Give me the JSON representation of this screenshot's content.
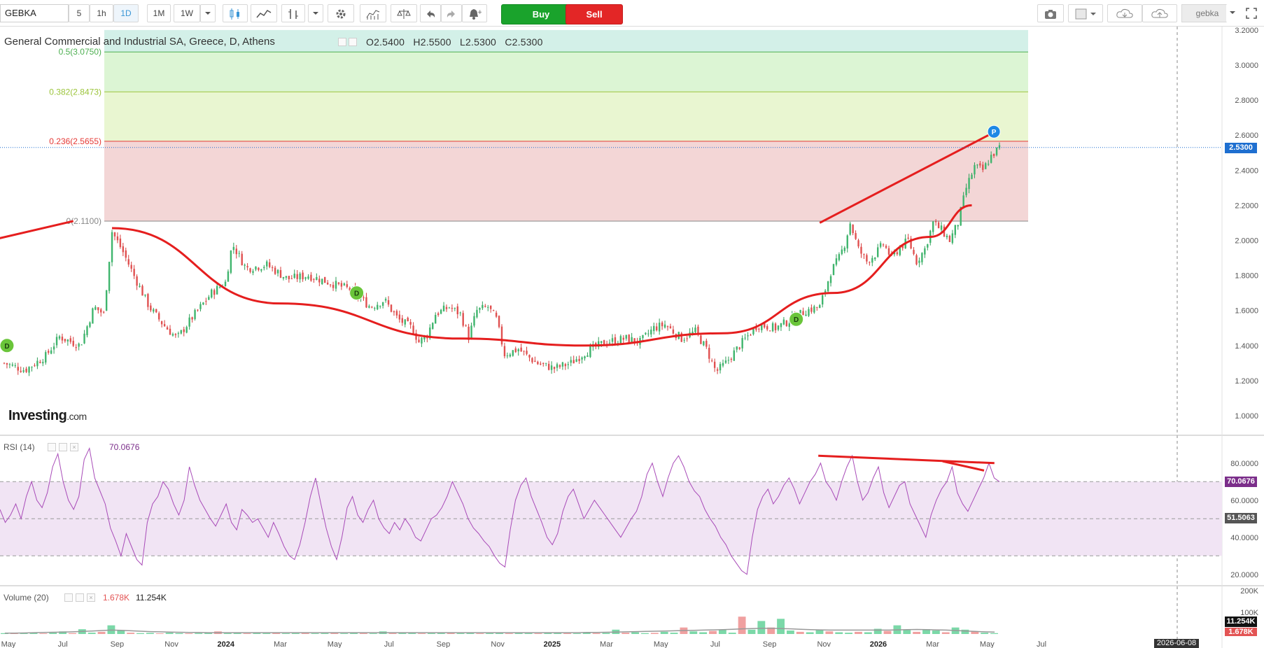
{
  "toolbar": {
    "symbol": "GEBKA",
    "intervals": [
      "5",
      "1h",
      "1D",
      "1M",
      "1W"
    ],
    "active_interval": "1D",
    "buy_label": "Buy",
    "sell_label": "Sell",
    "user": "gebka",
    "icons": [
      "chevron-down-icon",
      "candlestick-icon",
      "line-style-icon",
      "bar-style-icon",
      "chevron-down-icon",
      "settings-icon",
      "indicators-icon",
      "compare-icon",
      "undo-icon",
      "redo-icon",
      "alert-icon",
      "camera-icon",
      "layout-icon",
      "cloud-download-icon",
      "cloud-upload-icon",
      "fullscreen-icon"
    ]
  },
  "legend": {
    "title": "General Commercial and Industrial SA, Greece, D, Athens",
    "open": "O2.5400",
    "high": "H2.5500",
    "low": "L2.5300",
    "close": "C2.5300"
  },
  "logo": {
    "main": "Investing",
    "suffix": ".com"
  },
  "chart_data": [
    {
      "type": "candlestick",
      "title": "General Commercial and Industrial SA, Greece, D, Athens",
      "x_ticks": [
        "May",
        "Jul",
        "Sep",
        "Nov",
        "2024",
        "Mar",
        "May",
        "Jul",
        "Sep",
        "Nov",
        "2025",
        "Mar",
        "May",
        "Jul",
        "Sep",
        "Nov",
        "2026",
        "Mar",
        "May",
        "Jul"
      ],
      "crosshair_date": "2026-06-08",
      "y_ticks": [
        "1.0000",
        "1.2000",
        "1.4000",
        "1.6000",
        "1.8000",
        "2.0000",
        "2.2000",
        "2.4000",
        "2.6000",
        "2.8000",
        "3.0000",
        "3.2000"
      ],
      "ylim": [
        0.9,
        3.2
      ],
      "last_price": "2.5300",
      "ohlc_last": {
        "open": 2.54,
        "high": 2.55,
        "low": 2.53,
        "close": 2.53
      },
      "close_path": [
        {
          "i": 0,
          "v": 1.3
        },
        {
          "i": 15,
          "v": 1.26
        },
        {
          "i": 30,
          "v": 1.34
        },
        {
          "i": 40,
          "v": 1.45
        },
        {
          "i": 55,
          "v": 1.4
        },
        {
          "i": 65,
          "v": 1.62
        },
        {
          "i": 72,
          "v": 1.58
        },
        {
          "i": 78,
          "v": 2.05
        },
        {
          "i": 85,
          "v": 1.95
        },
        {
          "i": 95,
          "v": 1.78
        },
        {
          "i": 105,
          "v": 1.62
        },
        {
          "i": 115,
          "v": 1.52
        },
        {
          "i": 125,
          "v": 1.44
        },
        {
          "i": 135,
          "v": 1.55
        },
        {
          "i": 150,
          "v": 1.7
        },
        {
          "i": 160,
          "v": 1.76
        },
        {
          "i": 165,
          "v": 1.98
        },
        {
          "i": 175,
          "v": 1.84
        },
        {
          "i": 190,
          "v": 1.86
        },
        {
          "i": 205,
          "v": 1.78
        },
        {
          "i": 220,
          "v": 1.8
        },
        {
          "i": 235,
          "v": 1.76
        },
        {
          "i": 250,
          "v": 1.72
        },
        {
          "i": 265,
          "v": 1.62
        },
        {
          "i": 275,
          "v": 1.66
        },
        {
          "i": 285,
          "v": 1.55
        },
        {
          "i": 295,
          "v": 1.5
        },
        {
          "i": 300,
          "v": 1.42
        },
        {
          "i": 306,
          "v": 1.46
        },
        {
          "i": 312,
          "v": 1.58
        },
        {
          "i": 322,
          "v": 1.62
        },
        {
          "i": 330,
          "v": 1.58
        },
        {
          "i": 336,
          "v": 1.45
        },
        {
          "i": 342,
          "v": 1.6
        },
        {
          "i": 350,
          "v": 1.62
        },
        {
          "i": 356,
          "v": 1.55
        },
        {
          "i": 362,
          "v": 1.35
        },
        {
          "i": 372,
          "v": 1.38
        },
        {
          "i": 385,
          "v": 1.3
        },
        {
          "i": 398,
          "v": 1.27
        },
        {
          "i": 410,
          "v": 1.3
        },
        {
          "i": 420,
          "v": 1.36
        },
        {
          "i": 435,
          "v": 1.42
        },
        {
          "i": 450,
          "v": 1.44
        },
        {
          "i": 460,
          "v": 1.42
        },
        {
          "i": 470,
          "v": 1.5
        },
        {
          "i": 478,
          "v": 1.52
        },
        {
          "i": 490,
          "v": 1.44
        },
        {
          "i": 500,
          "v": 1.48
        },
        {
          "i": 508,
          "v": 1.38
        },
        {
          "i": 515,
          "v": 1.25
        },
        {
          "i": 522,
          "v": 1.3
        },
        {
          "i": 532,
          "v": 1.4
        },
        {
          "i": 545,
          "v": 1.52
        },
        {
          "i": 558,
          "v": 1.5
        },
        {
          "i": 570,
          "v": 1.55
        },
        {
          "i": 580,
          "v": 1.6
        },
        {
          "i": 590,
          "v": 1.62
        },
        {
          "i": 598,
          "v": 1.82
        },
        {
          "i": 604,
          "v": 1.9
        },
        {
          "i": 608,
          "v": 1.98
        },
        {
          "i": 612,
          "v": 2.1
        },
        {
          "i": 618,
          "v": 1.95
        },
        {
          "i": 624,
          "v": 1.88
        },
        {
          "i": 630,
          "v": 1.92
        },
        {
          "i": 636,
          "v": 1.98
        },
        {
          "i": 642,
          "v": 1.9
        },
        {
          "i": 648,
          "v": 1.96
        },
        {
          "i": 654,
          "v": 2.0
        },
        {
          "i": 660,
          "v": 1.88
        },
        {
          "i": 666,
          "v": 1.95
        },
        {
          "i": 672,
          "v": 2.1
        },
        {
          "i": 678,
          "v": 2.06
        },
        {
          "i": 684,
          "v": 2.0
        },
        {
          "i": 690,
          "v": 2.1
        },
        {
          "i": 696,
          "v": 2.3
        },
        {
          "i": 702,
          "v": 2.42
        },
        {
          "i": 708,
          "v": 2.4
        },
        {
          "i": 714,
          "v": 2.48
        },
        {
          "i": 720,
          "v": 2.53
        }
      ],
      "markers": [
        {
          "label": "D",
          "date_index": 2,
          "price": 1.4
        },
        {
          "label": "D",
          "date_index": 255,
          "price": 1.7
        },
        {
          "label": "D",
          "date_index": 573,
          "price": 1.55
        },
        {
          "label": "P",
          "date_index": 716,
          "price": 2.62
        }
      ],
      "fibonacci": [
        {
          "label": "0.5(3.0750)",
          "level": 3.075,
          "color": "#4caf50"
        },
        {
          "label": "0.382(2.8473)",
          "level": 2.8473,
          "color": "#9bc43a"
        },
        {
          "label": "0.236(2.5655)",
          "level": 2.5655,
          "color": "#e53935"
        },
        {
          "label": "0(2.1100)",
          "level": 2.11,
          "color": "#888888"
        }
      ],
      "fib_fill_colors": [
        "#d3f0e8",
        "#dcf5d4",
        "#e9f6d1",
        "#f3d6d6"
      ],
      "drawings": [
        {
          "type": "line",
          "from": {
            "i": -10,
            "v": 2.0
          },
          "to": {
            "i": 50,
            "v": 2.11
          }
        },
        {
          "type": "curve",
          "name": "rounding-bottom",
          "points": [
            {
              "i": 78,
              "v": 2.07
            },
            {
              "i": 200,
              "v": 1.64
            },
            {
              "i": 330,
              "v": 1.44
            },
            {
              "i": 420,
              "v": 1.4
            },
            {
              "i": 520,
              "v": 1.47
            },
            {
              "i": 600,
              "v": 1.7
            },
            {
              "i": 670,
              "v": 2.02
            },
            {
              "i": 700,
              "v": 2.2
            }
          ]
        },
        {
          "type": "line",
          "name": "upper-trendline",
          "from": {
            "i": 590,
            "v": 2.1
          },
          "to": {
            "i": 712,
            "v": 2.6
          }
        }
      ]
    },
    {
      "type": "line",
      "title": "RSI (14)",
      "current": "70.0676",
      "mid_value": "51.5063",
      "y_ticks": [
        "20.0000",
        "40.0000",
        "60.0000",
        "80.0000"
      ],
      "ylim": [
        15,
        92
      ],
      "band": [
        30,
        70
      ],
      "values": [
        55,
        48,
        52,
        58,
        50,
        62,
        70,
        60,
        56,
        64,
        78,
        85,
        70,
        60,
        55,
        62,
        82,
        88,
        72,
        65,
        58,
        45,
        38,
        30,
        42,
        35,
        28,
        25,
        48,
        58,
        62,
        70,
        66,
        58,
        52,
        60,
        78,
        68,
        60,
        55,
        50,
        46,
        52,
        58,
        48,
        44,
        55,
        52,
        48,
        50,
        45,
        40,
        48,
        42,
        35,
        30,
        28,
        36,
        48,
        62,
        72,
        58,
        45,
        35,
        28,
        40,
        56,
        62,
        52,
        48,
        55,
        60,
        50,
        45,
        42,
        48,
        44,
        50,
        46,
        40,
        38,
        44,
        50,
        52,
        56,
        62,
        70,
        64,
        58,
        50,
        45,
        42,
        38,
        35,
        30,
        26,
        24,
        44,
        60,
        68,
        72,
        62,
        55,
        48,
        40,
        36,
        42,
        54,
        62,
        66,
        58,
        50,
        55,
        60,
        56,
        52,
        48,
        44,
        40,
        45,
        50,
        54,
        62,
        74,
        80,
        70,
        62,
        72,
        80,
        84,
        78,
        70,
        65,
        62,
        55,
        50,
        46,
        40,
        36,
        30,
        26,
        22,
        20,
        40,
        55,
        62,
        66,
        58,
        62,
        68,
        72,
        66,
        58,
        64,
        70,
        74,
        80,
        70,
        66,
        60,
        70,
        78,
        84,
        70,
        60,
        64,
        72,
        78,
        64,
        56,
        62,
        68,
        70,
        58,
        52,
        46,
        40,
        52,
        60,
        66,
        70,
        78,
        64,
        58,
        54,
        60,
        66,
        72,
        80,
        72,
        70
      ],
      "drawings": [
        {
          "type": "line",
          "from": {
            "t": 0.79,
            "v": 84
          },
          "to": {
            "t": 0.96,
            "v": 80
          }
        },
        {
          "type": "line",
          "from": {
            "t": 0.91,
            "v": 81
          },
          "to": {
            "t": 0.95,
            "v": 76
          }
        }
      ]
    },
    {
      "type": "bar",
      "title": "Volume (20)",
      "value_red": "1.678K",
      "value_black": "11.254K",
      "y_ticks": [
        "100K",
        "200K"
      ],
      "ylim": [
        0,
        200
      ],
      "values": [
        4,
        3,
        5,
        8,
        3,
        6,
        12,
        4,
        22,
        6,
        10,
        40,
        18,
        6,
        4,
        5,
        3,
        6,
        4,
        3,
        4,
        5,
        12,
        4,
        8,
        3,
        5,
        4,
        6,
        3,
        4,
        8,
        3,
        4,
        6,
        3,
        5,
        4,
        3,
        12,
        4,
        6,
        5,
        3,
        4,
        8,
        5,
        4,
        6,
        3,
        4,
        5,
        3,
        6,
        4,
        3,
        8,
        5,
        4,
        3,
        6,
        4,
        5,
        20,
        6,
        8,
        4,
        5,
        10,
        6,
        30,
        12,
        8,
        14,
        20,
        6,
        80,
        20,
        60,
        30,
        70,
        16,
        10,
        8,
        20,
        12,
        8,
        6,
        10,
        8,
        24,
        14,
        40,
        18,
        10,
        22,
        16,
        8,
        30,
        20,
        12,
        6,
        4
      ],
      "avg": [
        4,
        4,
        5,
        6,
        7,
        8,
        9,
        10,
        12,
        14,
        16,
        18,
        17,
        15,
        13,
        11,
        10,
        9,
        8,
        7,
        7,
        6,
        6,
        6,
        6,
        6,
        6,
        6,
        6,
        6,
        6,
        6,
        6,
        6,
        6,
        6,
        6,
        6,
        6,
        6,
        6,
        6,
        6,
        6,
        6,
        6,
        6,
        6,
        6,
        6,
        6,
        6,
        6,
        6,
        6,
        6,
        6,
        6,
        6,
        6,
        7,
        7,
        8,
        9,
        10,
        11,
        12,
        13,
        14,
        15,
        16,
        17,
        18,
        19,
        20,
        22,
        24,
        25,
        26,
        26,
        25,
        24,
        22,
        20,
        19,
        18,
        18,
        18,
        18,
        18,
        18,
        18,
        19,
        20,
        21,
        20,
        19,
        18,
        16,
        14,
        12,
        10,
        9
      ]
    }
  ]
}
